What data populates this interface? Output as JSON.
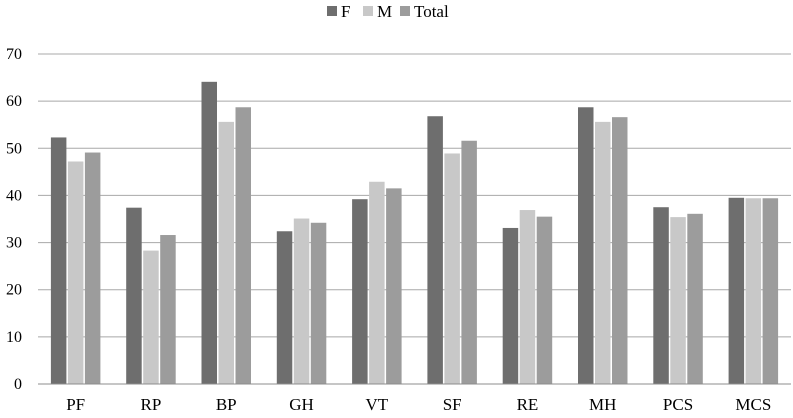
{
  "chart_data": {
    "type": "bar",
    "categories": [
      "PF",
      "RP",
      "BP",
      "GH",
      "VT",
      "SF",
      "RE",
      "MH",
      "PCS",
      "MCS"
    ],
    "series": [
      {
        "name": "F",
        "color": "#6e6e6e",
        "values": [
          52.3,
          37.4,
          64.1,
          32.4,
          39.2,
          56.8,
          33.1,
          58.7,
          37.5,
          39.5
        ]
      },
      {
        "name": "M",
        "color": "#c8c8c8",
        "values": [
          47.2,
          28.3,
          55.6,
          35.1,
          42.9,
          48.9,
          36.9,
          55.6,
          35.4,
          39.4
        ]
      },
      {
        "name": "Total",
        "color": "#9c9c9c",
        "values": [
          49.1,
          31.6,
          58.7,
          34.2,
          41.5,
          51.6,
          35.5,
          56.6,
          36.1,
          39.4
        ]
      }
    ],
    "ylim": [
      0,
      70
    ],
    "yticks": [
      "0",
      "10",
      "20",
      "30",
      "40",
      "50",
      "60",
      "70"
    ],
    "grid": true,
    "legend_position": "top"
  }
}
